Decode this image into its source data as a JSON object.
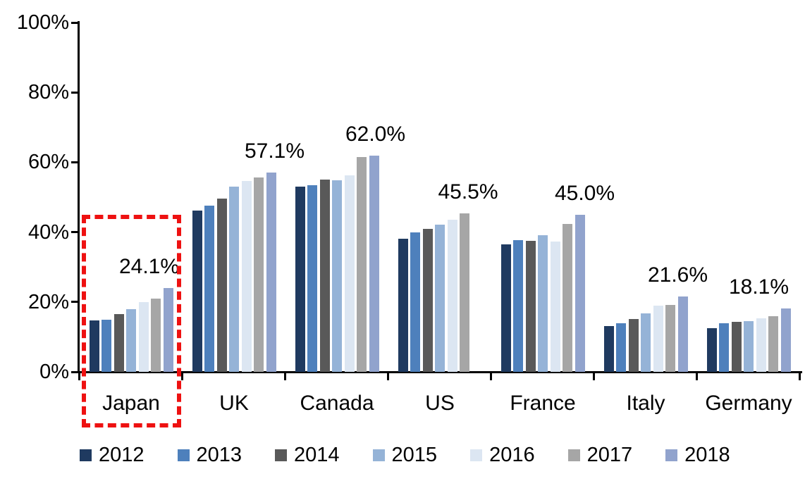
{
  "chart_data": {
    "type": "bar",
    "title": "",
    "xlabel": "",
    "ylabel": "",
    "categories": [
      "Japan",
      "UK",
      "Canada",
      "US",
      "France",
      "Italy",
      "Germany"
    ],
    "series": [
      {
        "name": "2012",
        "color": "#1F3A60",
        "values": [
          14.7,
          46.2,
          53.0,
          38.2,
          36.5,
          13.2,
          12.5
        ]
      },
      {
        "name": "2013",
        "color": "#4E80BC",
        "values": [
          15.0,
          47.7,
          53.4,
          40.0,
          37.7,
          13.9,
          13.9
        ]
      },
      {
        "name": "2014",
        "color": "#595959",
        "values": [
          16.5,
          49.7,
          55.0,
          41.0,
          37.6,
          15.2,
          14.4
        ]
      },
      {
        "name": "2015",
        "color": "#95B3D7",
        "values": [
          17.9,
          53.0,
          54.8,
          42.1,
          39.2,
          16.8,
          14.6
        ]
      },
      {
        "name": "2016",
        "color": "#DCE6F2",
        "values": [
          20.0,
          54.6,
          56.3,
          43.5,
          37.4,
          18.9,
          15.4
        ]
      },
      {
        "name": "2017",
        "color": "#A6A6A6",
        "values": [
          21.0,
          55.6,
          61.6,
          45.5,
          42.3,
          19.1,
          15.9
        ]
      },
      {
        "name": "2018",
        "color": "#91A3CD",
        "values": [
          24.1,
          57.1,
          62.0,
          null,
          45.0,
          21.6,
          18.1
        ]
      }
    ],
    "annotations": [
      {
        "category": "Japan",
        "text": "24.1%"
      },
      {
        "category": "UK",
        "text": "57.1%"
      },
      {
        "category": "Canada",
        "text": "62.0%"
      },
      {
        "category": "US",
        "text": "45.5%"
      },
      {
        "category": "France",
        "text": "45.0%"
      },
      {
        "category": "Italy",
        "text": "21.6%"
      },
      {
        "category": "Germany",
        "text": "18.1%"
      }
    ],
    "y_axis": {
      "min": 0,
      "max": 100,
      "tick_labels": [
        "100%",
        "80%",
        "60%",
        "40%",
        "20%",
        "0%"
      ],
      "unit": "%"
    },
    "grid": false,
    "legend_position": "bottom",
    "highlight": {
      "category": "Japan",
      "style": "red-dashed-box",
      "color": "#ee1111"
    }
  }
}
